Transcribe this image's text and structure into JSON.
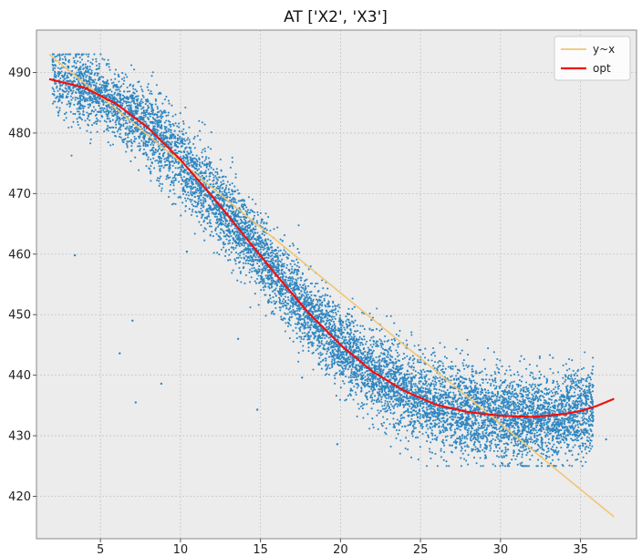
{
  "chart_data": {
    "type": "scatter",
    "title": "AT ['X2', 'X3']",
    "xlabel": "",
    "ylabel": "",
    "xlim": [
      1.0,
      38.5
    ],
    "ylim": [
      413,
      497
    ],
    "x_ticks": [
      5,
      10,
      15,
      20,
      25,
      30,
      35
    ],
    "y_ticks": [
      420,
      430,
      440,
      450,
      460,
      470,
      480,
      490
    ],
    "grid": true,
    "legend_position": "top-right",
    "scatter": {
      "color": "#2e86c1",
      "point_count": 9000,
      "trend": "decreasing",
      "x_range": [
        1.8,
        37.1
      ],
      "y_range": [
        425,
        493
      ],
      "outliers": [
        {
          "x": 3.4,
          "y": 459.8
        },
        {
          "x": 6.2,
          "y": 443.6
        },
        {
          "x": 7.0,
          "y": 449.0
        },
        {
          "x": 7.2,
          "y": 435.5
        },
        {
          "x": 8.8,
          "y": 438.6
        },
        {
          "x": 10.4,
          "y": 460.4
        },
        {
          "x": 13.6,
          "y": 446.0
        },
        {
          "x": 14.8,
          "y": 434.3
        },
        {
          "x": 17.6,
          "y": 439.6
        },
        {
          "x": 19.8,
          "y": 428.6
        },
        {
          "x": 36.6,
          "y": 429.4
        }
      ]
    },
    "series": [
      {
        "name": "y~x",
        "color": "#f0c674",
        "x": [
          1.8,
          37.1
        ],
        "y": [
          493.0,
          416.6
        ]
      },
      {
        "name": "opt",
        "color": "#ee1111",
        "x": [
          1.8,
          4,
          6,
          8,
          10,
          12,
          14,
          16,
          18,
          20,
          22,
          24,
          26,
          28,
          30,
          32,
          34,
          35,
          36,
          37.1
        ],
        "y": [
          488.9,
          487.5,
          484.8,
          480.8,
          475.6,
          469.5,
          463.0,
          456.5,
          450.3,
          445.0,
          440.6,
          437.4,
          435.1,
          433.9,
          433.3,
          433.1,
          433.6,
          434.1,
          434.9,
          436.1
        ]
      }
    ]
  }
}
